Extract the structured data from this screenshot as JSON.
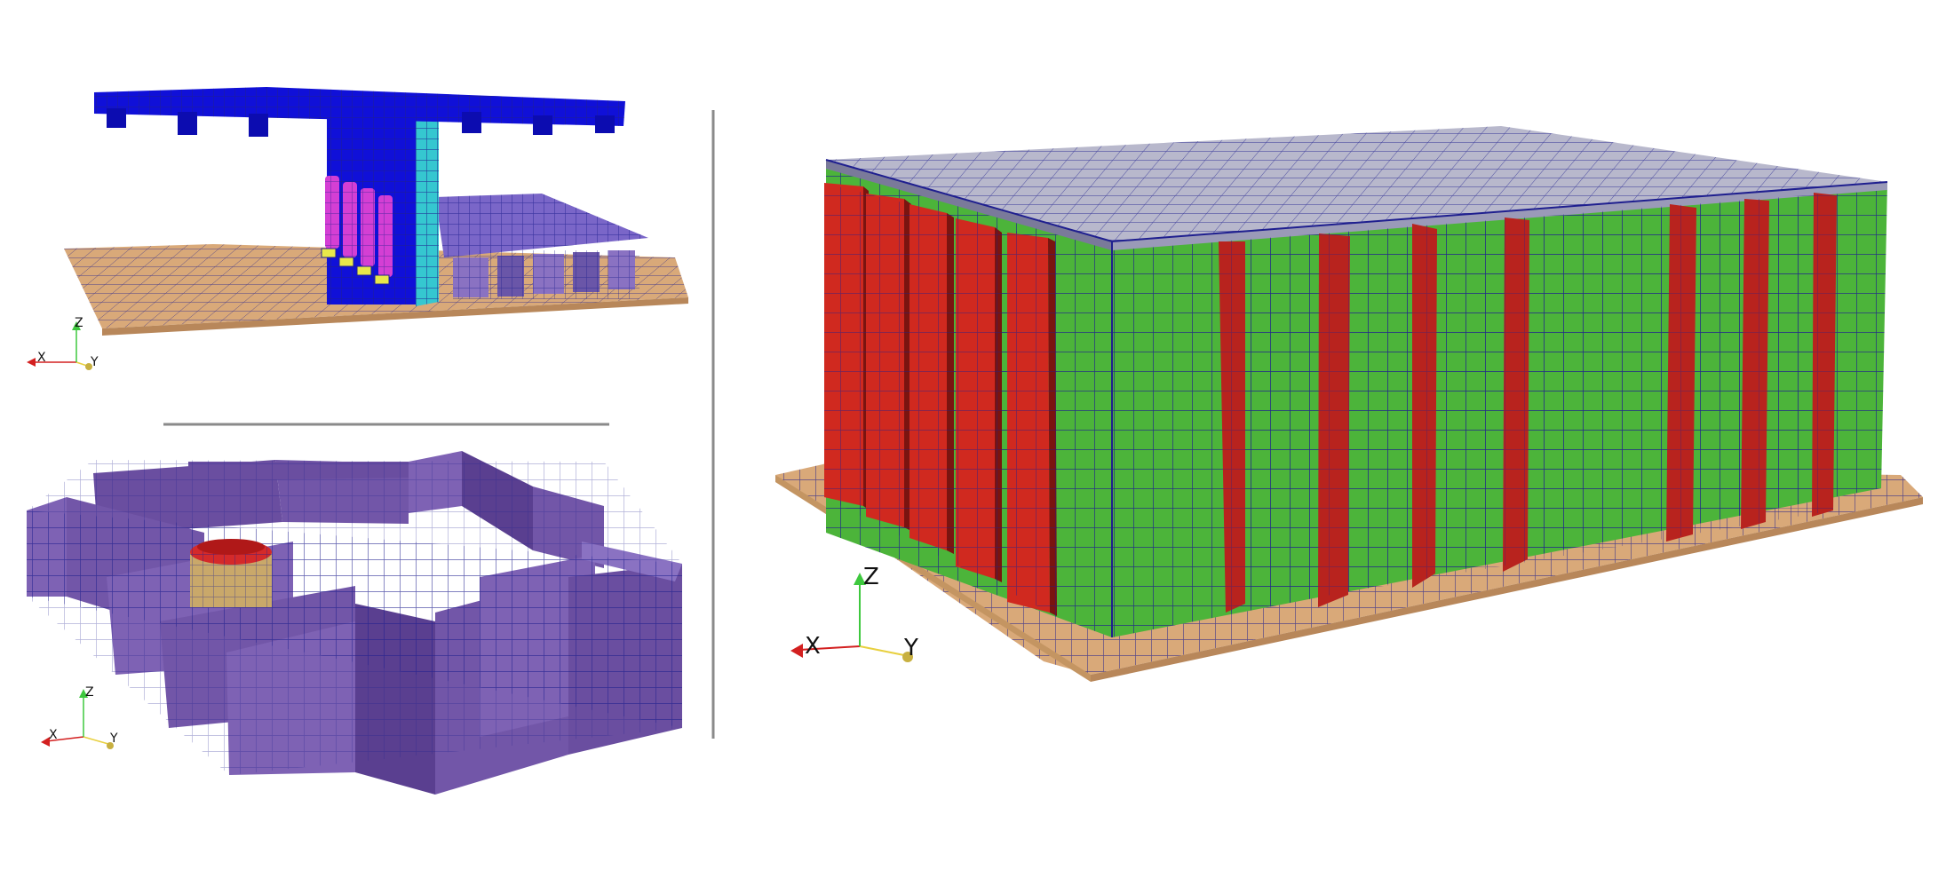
{
  "colors": {
    "background": "#ffffff",
    "base_plate": "#d9a979",
    "mesh_line": "#1f1f8f",
    "top_grid_blue": "#1010d8",
    "plate_purple": "#7a66c8",
    "rod_magenta": "#d43fd4",
    "rod_yellow": "#e8e84a",
    "wall_cyan": "#35c7d0",
    "grid_wall_violet": "#7256a8",
    "cylinder_tan": "#c9a86a",
    "cylinder_red": "#d42a2a",
    "block_green": "#4cb43a",
    "block_top": "#b8b8cc",
    "fin_red": "#b8231e",
    "divider_gray": "#8a8a8a",
    "axis_x": "#d32020",
    "axis_y": "#e8d040",
    "axis_z": "#3ec83e"
  },
  "views": {
    "top_left": {
      "triad": {
        "x_label": "X",
        "y_label": "Y",
        "z_label": "Z"
      }
    },
    "bottom_left": {
      "triad": {
        "x_label": "X",
        "y_label": "Y",
        "z_label": "Z"
      }
    },
    "right": {
      "triad": {
        "x_label": "X",
        "y_label": "Y",
        "z_label": "Z"
      }
    }
  }
}
